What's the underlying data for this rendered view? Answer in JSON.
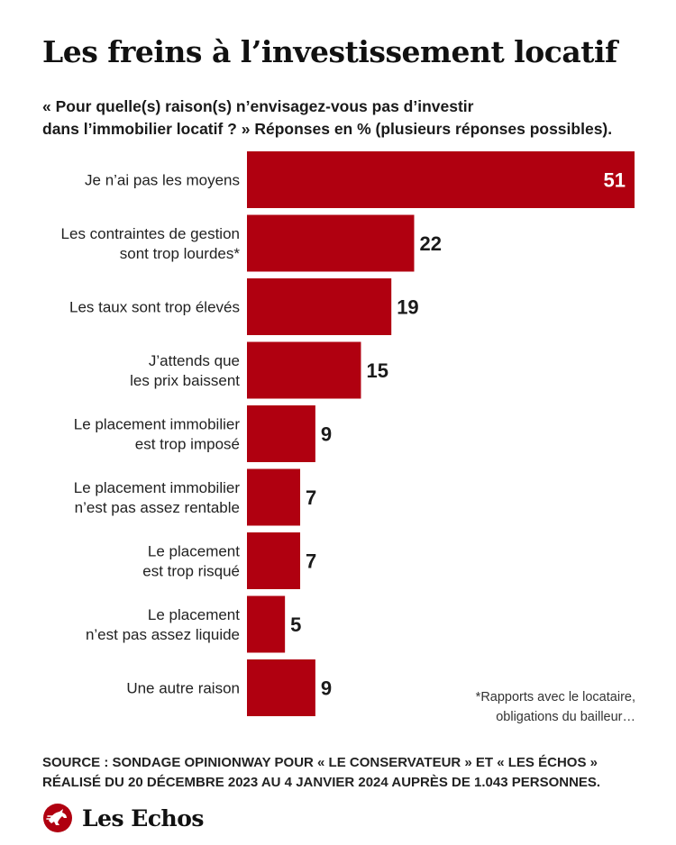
{
  "title": "Les freins à l’investissement locatif",
  "subtitle": {
    "line1": "« Pour quelle(s) raison(s) n’envisagez-vous pas d’investir",
    "line2": "dans l’immobilier locatif ? » Réponses en % (plusieurs réponses possibles)."
  },
  "colors": {
    "bar": "#b00010",
    "value_text": "#1a1a1a",
    "value_text_inside": "#ffffff"
  },
  "chart_data": {
    "type": "bar",
    "orientation": "horizontal",
    "categories": [
      [
        "Je n’ai pas les moyens"
      ],
      [
        "Les contraintes de gestion",
        "sont trop lourdes*"
      ],
      [
        "Les taux sont trop élevés"
      ],
      [
        "J’attends que",
        "les prix baissent"
      ],
      [
        "Le placement immobilier",
        "est trop imposé"
      ],
      [
        "Le placement immobilier",
        "n’est pas assez rentable"
      ],
      [
        "Le placement",
        "est trop risqué"
      ],
      [
        "Le placement",
        "n’est pas assez liquide"
      ],
      [
        "Une autre raison"
      ]
    ],
    "values": [
      51,
      22,
      19,
      15,
      9,
      7,
      7,
      5,
      9
    ],
    "unit": "%",
    "grid": false,
    "legend": "none"
  },
  "footnote": {
    "line1": "*Rapports avec le locataire,",
    "line2": "obligations du bailleur…"
  },
  "source": {
    "line1": "SOURCE : SONDAGE OPINIONWAY POUR « LE CONSERVATEUR » ET « LES ÉCHOS »",
    "line2": "RÉALISÉ DU 20 DÉCEMBRE 2023 AU 4 JANVIER 2024 AUPRÈS DE 1.043 PERSONNES."
  },
  "brand": {
    "name": "Les Echos",
    "logo_icon": "les-echos-horse-logo"
  }
}
